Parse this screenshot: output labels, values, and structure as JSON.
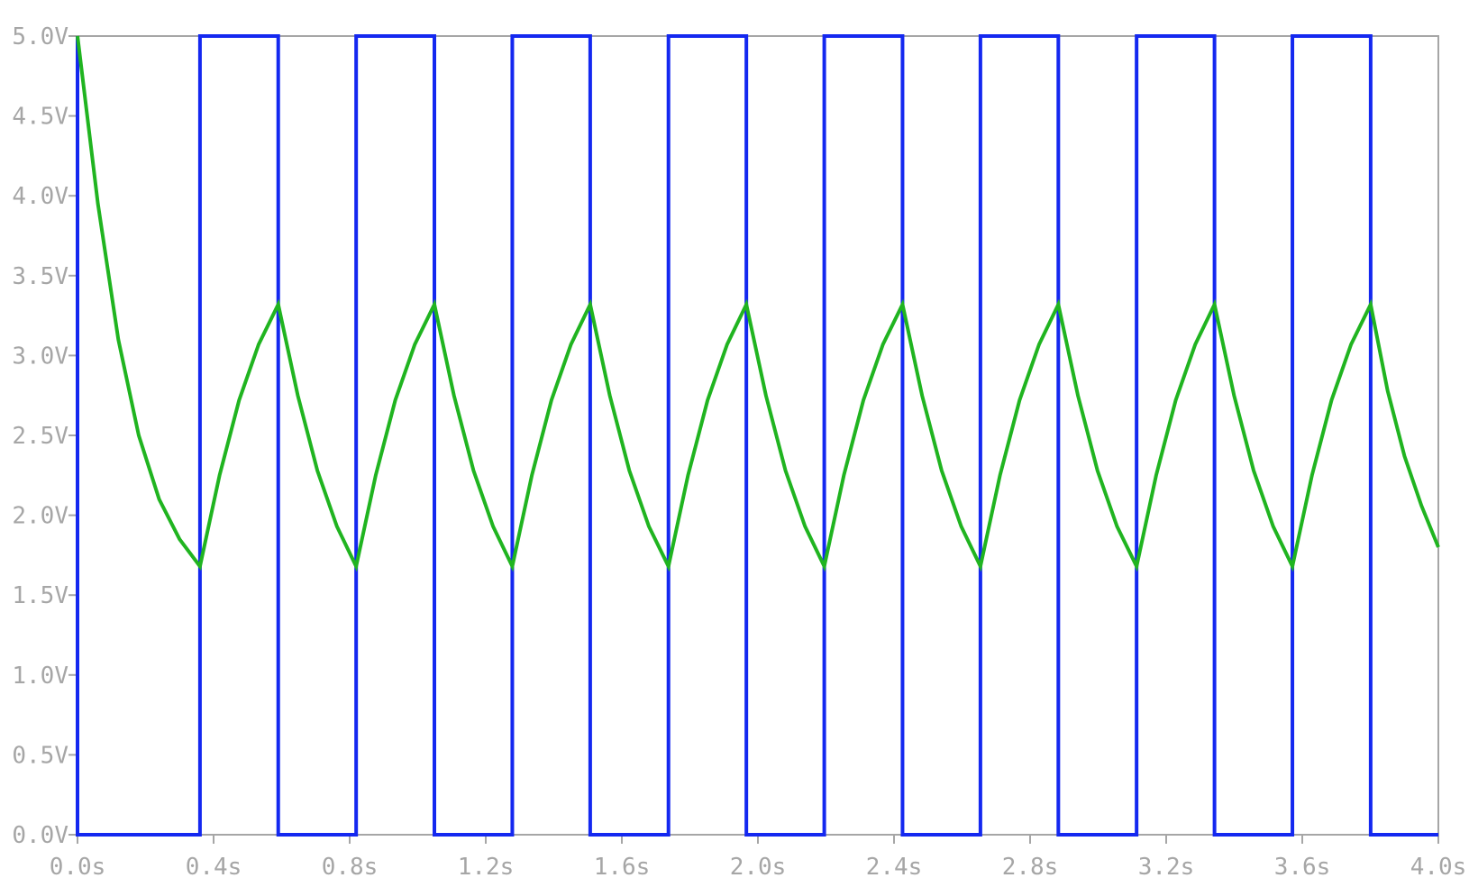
{
  "chart_data": {
    "type": "line",
    "title": "",
    "xlabel": "",
    "ylabel": "",
    "xlim": [
      0,
      4.0
    ],
    "ylim": [
      0,
      5.0
    ],
    "x_ticks": [
      0,
      0.4,
      0.8,
      1.2,
      1.6,
      2.0,
      2.4,
      2.8,
      3.2,
      3.6,
      4.0
    ],
    "x_tick_labels": [
      "0.0s",
      "0.4s",
      "0.8s",
      "1.2s",
      "1.6s",
      "2.0s",
      "2.4s",
      "2.8s",
      "3.2s",
      "3.6s",
      "4.0s"
    ],
    "y_ticks": [
      0,
      0.5,
      1.0,
      1.5,
      2.0,
      2.5,
      3.0,
      3.5,
      4.0,
      4.5,
      5.0
    ],
    "y_tick_labels": [
      "0.0V",
      "0.5V",
      "1.0V",
      "1.5V",
      "2.0V",
      "2.5V",
      "3.0V",
      "3.5V",
      "4.0V",
      "4.5V",
      "5.0V"
    ],
    "grid": false,
    "legend": "none",
    "series": [
      {
        "color": "#1428f0",
        "style": "step",
        "x": [
          0.0,
          0.0,
          0.36,
          0.36,
          0.59,
          0.59,
          0.819,
          0.819,
          1.049,
          1.049,
          1.278,
          1.278,
          1.507,
          1.507,
          1.737,
          1.737,
          1.966,
          1.966,
          2.195,
          2.195,
          2.425,
          2.425,
          2.654,
          2.654,
          2.883,
          2.883,
          3.113,
          3.113,
          3.342,
          3.342,
          3.571,
          3.571,
          3.801,
          3.801,
          4.0
        ],
        "values": [
          5.0,
          0.0,
          0.0,
          5.0,
          5.0,
          0.0,
          0.0,
          5.0,
          5.0,
          0.0,
          0.0,
          5.0,
          5.0,
          0.0,
          0.0,
          5.0,
          5.0,
          0.0,
          0.0,
          5.0,
          5.0,
          0.0,
          0.0,
          5.0,
          5.0,
          0.0,
          0.0,
          5.0,
          5.0,
          0.0,
          0.0,
          5.0,
          5.0,
          0.0,
          0.0
        ]
      },
      {
        "color": "#20b420",
        "style": "curve",
        "x": [
          0.0,
          0.06,
          0.12,
          0.18,
          0.24,
          0.3,
          0.36,
          0.4175,
          0.475,
          0.5325,
          0.59,
          0.6475,
          0.705,
          0.7625,
          0.819,
          0.8765,
          0.934,
          0.9915,
          1.049,
          1.1065,
          1.164,
          1.2215,
          1.278,
          1.3355,
          1.393,
          1.4505,
          1.507,
          1.5645,
          1.622,
          1.6795,
          1.737,
          1.7945,
          1.852,
          1.9095,
          1.966,
          2.0235,
          2.081,
          2.1385,
          2.195,
          2.2525,
          2.31,
          2.3675,
          2.425,
          2.4825,
          2.54,
          2.5975,
          2.654,
          2.7115,
          2.769,
          2.8265,
          2.883,
          2.9405,
          2.998,
          3.0555,
          3.113,
          3.1705,
          3.228,
          3.2855,
          3.342,
          3.3995,
          3.457,
          3.5145,
          3.571,
          3.6285,
          3.686,
          3.7435,
          3.801,
          3.8508,
          3.9005,
          3.9503,
          4.0
        ],
        "values": [
          5.0,
          3.95,
          3.1,
          2.5,
          2.1,
          1.85,
          1.68,
          2.25,
          2.72,
          3.07,
          3.32,
          2.75,
          2.28,
          1.93,
          1.68,
          2.25,
          2.72,
          3.07,
          3.32,
          2.75,
          2.28,
          1.93,
          1.68,
          2.25,
          2.72,
          3.07,
          3.32,
          2.75,
          2.28,
          1.93,
          1.68,
          2.25,
          2.72,
          3.07,
          3.32,
          2.75,
          2.28,
          1.93,
          1.68,
          2.25,
          2.72,
          3.07,
          3.32,
          2.75,
          2.28,
          1.93,
          1.68,
          2.25,
          2.72,
          3.07,
          3.32,
          2.75,
          2.28,
          1.93,
          1.68,
          2.25,
          2.72,
          3.07,
          3.32,
          2.75,
          2.28,
          1.93,
          1.68,
          2.25,
          2.72,
          3.07,
          3.32,
          2.78,
          2.37,
          2.06,
          1.8
        ]
      }
    ]
  }
}
